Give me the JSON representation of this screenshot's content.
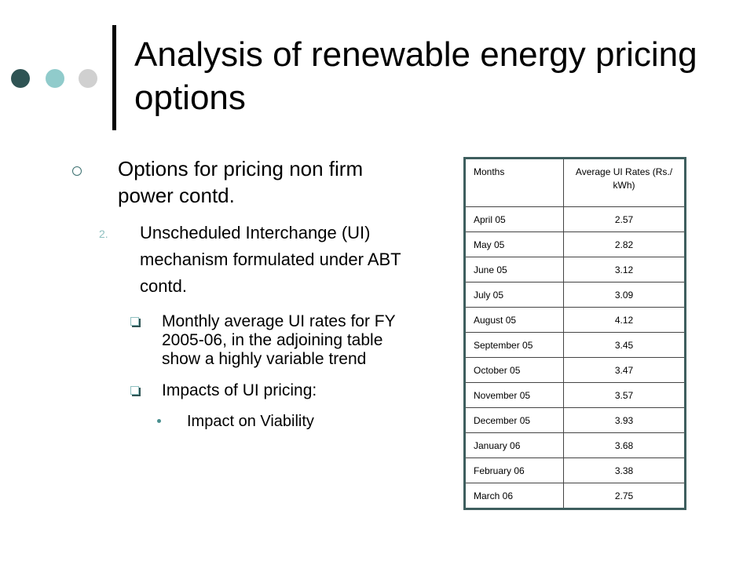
{
  "slide": {
    "title": "Analysis of renewable energy pricing options",
    "level1": "Options for pricing non firm power contd.",
    "level2_number": "2.",
    "level2": "Unscheduled Interchange (UI) mechanism formulated under ABT contd.",
    "level3": [
      "Monthly average UI rates for FY 2005-06, in the adjoining table show a highly variable trend",
      "Impacts of UI pricing:"
    ],
    "level4": "Impact on Viability"
  },
  "table": {
    "headers": [
      "Months",
      "Average UI Rates (Rs./ kWh)"
    ],
    "rows": [
      [
        "April 05",
        "2.57"
      ],
      [
        "May 05",
        "2.82"
      ],
      [
        "June 05",
        "3.12"
      ],
      [
        "July 05",
        "3.09"
      ],
      [
        "August 05",
        "4.12"
      ],
      [
        "September 05",
        "3.45"
      ],
      [
        "October 05",
        "3.47"
      ],
      [
        "November 05",
        "3.57"
      ],
      [
        "December 05",
        "3.93"
      ],
      [
        "January 06",
        "3.68"
      ],
      [
        "February 06",
        "3.38"
      ],
      [
        "March 06",
        "2.75"
      ]
    ]
  },
  "colors": {
    "dot_dark": "#2f5454",
    "dot_teal": "#90cbcb",
    "dot_grey": "#d0d0d0",
    "table_border": "#3e5e5e"
  }
}
